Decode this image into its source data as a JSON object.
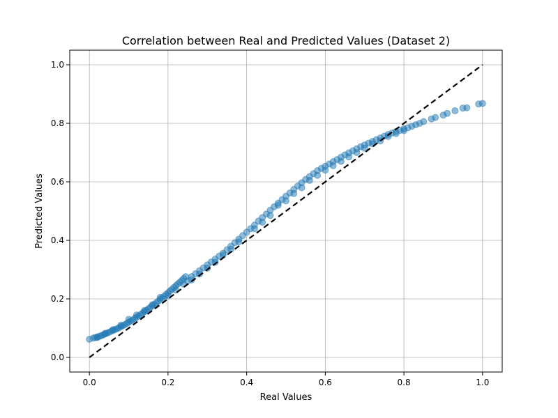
{
  "chart_data": {
    "type": "scatter",
    "title": "Correlation between Real and Predicted Values (Dataset 2)",
    "xlabel": "Real Values",
    "ylabel": "Predicted Values",
    "xlim": [
      -0.05,
      1.05
    ],
    "ylim": [
      -0.05,
      1.05
    ],
    "xticks": [
      "0.0",
      "0.2",
      "0.4",
      "0.6",
      "0.8",
      "1.0"
    ],
    "yticks": [
      "0.0",
      "0.2",
      "0.4",
      "0.6",
      "0.8",
      "1.0"
    ],
    "xtick_values": [
      0.0,
      0.2,
      0.4,
      0.6,
      0.8,
      1.0
    ],
    "ytick_values": [
      0.0,
      0.2,
      0.4,
      0.6,
      0.8,
      1.0
    ],
    "grid": true,
    "reference_line": {
      "x": [
        0,
        1
      ],
      "y": [
        0,
        1
      ],
      "style": "dashed",
      "color": "#000000"
    },
    "marker_color": "#1f77b4",
    "marker_alpha": 0.5,
    "series": [
      {
        "points": [
          [
            0.0,
            0.062
          ],
          [
            0.01,
            0.066
          ],
          [
            0.015,
            0.068
          ],
          [
            0.02,
            0.07
          ],
          [
            0.025,
            0.072
          ],
          [
            0.03,
            0.074
          ],
          [
            0.035,
            0.077
          ],
          [
            0.04,
            0.08
          ],
          [
            0.045,
            0.083
          ],
          [
            0.05,
            0.086
          ],
          [
            0.055,
            0.089
          ],
          [
            0.06,
            0.092
          ],
          [
            0.065,
            0.095
          ],
          [
            0.07,
            0.098
          ],
          [
            0.075,
            0.101
          ],
          [
            0.08,
            0.105
          ],
          [
            0.085,
            0.108
          ],
          [
            0.09,
            0.112
          ],
          [
            0.095,
            0.116
          ],
          [
            0.1,
            0.12
          ],
          [
            0.105,
            0.124
          ],
          [
            0.11,
            0.128
          ],
          [
            0.115,
            0.133
          ],
          [
            0.12,
            0.137
          ],
          [
            0.125,
            0.142
          ],
          [
            0.13,
            0.146
          ],
          [
            0.135,
            0.151
          ],
          [
            0.14,
            0.156
          ],
          [
            0.145,
            0.161
          ],
          [
            0.15,
            0.166
          ],
          [
            0.155,
            0.171
          ],
          [
            0.16,
            0.176
          ],
          [
            0.165,
            0.181
          ],
          [
            0.17,
            0.187
          ],
          [
            0.175,
            0.192
          ],
          [
            0.18,
            0.198
          ],
          [
            0.185,
            0.203
          ],
          [
            0.19,
            0.209
          ],
          [
            0.195,
            0.215
          ],
          [
            0.2,
            0.221
          ],
          [
            0.205,
            0.227
          ],
          [
            0.21,
            0.233
          ],
          [
            0.215,
            0.239
          ],
          [
            0.22,
            0.245
          ],
          [
            0.225,
            0.251
          ],
          [
            0.23,
            0.257
          ],
          [
            0.235,
            0.263
          ],
          [
            0.24,
            0.27
          ],
          [
            0.245,
            0.276
          ],
          [
            0.25,
            0.261
          ],
          [
            0.26,
            0.276
          ],
          [
            0.27,
            0.286
          ],
          [
            0.28,
            0.296
          ],
          [
            0.29,
            0.306
          ],
          [
            0.3,
            0.316
          ],
          [
            0.31,
            0.326
          ],
          [
            0.32,
            0.336
          ],
          [
            0.33,
            0.346
          ],
          [
            0.34,
            0.356
          ],
          [
            0.35,
            0.368
          ],
          [
            0.36,
            0.38
          ],
          [
            0.37,
            0.392
          ],
          [
            0.38,
            0.404
          ],
          [
            0.39,
            0.416
          ],
          [
            0.4,
            0.428
          ],
          [
            0.41,
            0.44
          ],
          [
            0.42,
            0.452
          ],
          [
            0.43,
            0.466
          ],
          [
            0.44,
            0.478
          ],
          [
            0.45,
            0.49
          ],
          [
            0.46,
            0.503
          ],
          [
            0.47,
            0.515
          ],
          [
            0.48,
            0.527
          ],
          [
            0.49,
            0.539
          ],
          [
            0.5,
            0.551
          ],
          [
            0.51,
            0.562
          ],
          [
            0.52,
            0.574
          ],
          [
            0.53,
            0.586
          ],
          [
            0.54,
            0.597
          ],
          [
            0.55,
            0.608
          ],
          [
            0.56,
            0.618
          ],
          [
            0.57,
            0.628
          ],
          [
            0.58,
            0.638
          ],
          [
            0.59,
            0.646
          ],
          [
            0.6,
            0.653
          ],
          [
            0.61,
            0.661
          ],
          [
            0.62,
            0.669
          ],
          [
            0.63,
            0.676
          ],
          [
            0.64,
            0.684
          ],
          [
            0.65,
            0.692
          ],
          [
            0.66,
            0.699
          ],
          [
            0.67,
            0.706
          ],
          [
            0.68,
            0.713
          ],
          [
            0.69,
            0.72
          ],
          [
            0.7,
            0.726
          ],
          [
            0.71,
            0.732
          ],
          [
            0.72,
            0.738
          ],
          [
            0.73,
            0.744
          ],
          [
            0.74,
            0.75
          ],
          [
            0.75,
            0.756
          ],
          [
            0.76,
            0.762
          ],
          [
            0.77,
            0.767
          ],
          [
            0.78,
            0.772
          ],
          [
            0.79,
            0.776
          ],
          [
            0.8,
            0.781
          ],
          [
            0.81,
            0.785
          ],
          [
            0.82,
            0.79
          ],
          [
            0.83,
            0.795
          ],
          [
            0.84,
            0.8
          ],
          [
            0.85,
            0.806
          ],
          [
            0.87,
            0.815
          ],
          [
            0.88,
            0.82
          ],
          [
            0.9,
            0.828
          ],
          [
            0.91,
            0.834
          ],
          [
            0.93,
            0.843
          ],
          [
            0.95,
            0.852
          ],
          [
            0.96,
            0.853
          ],
          [
            0.99,
            0.866
          ],
          [
            1.0,
            0.868
          ],
          [
            0.02,
            0.068
          ],
          [
            0.04,
            0.082
          ],
          [
            0.06,
            0.095
          ],
          [
            0.08,
            0.11
          ],
          [
            0.1,
            0.13
          ],
          [
            0.12,
            0.145
          ],
          [
            0.14,
            0.16
          ],
          [
            0.16,
            0.18
          ],
          [
            0.18,
            0.205
          ],
          [
            0.2,
            0.21
          ],
          [
            0.22,
            0.23
          ],
          [
            0.24,
            0.25
          ],
          [
            0.26,
            0.265
          ],
          [
            0.28,
            0.285
          ],
          [
            0.3,
            0.305
          ],
          [
            0.32,
            0.325
          ],
          [
            0.34,
            0.35
          ],
          [
            0.36,
            0.37
          ],
          [
            0.38,
            0.395
          ],
          [
            0.42,
            0.44
          ],
          [
            0.44,
            0.462
          ],
          [
            0.46,
            0.485
          ],
          [
            0.48,
            0.52
          ],
          [
            0.5,
            0.535
          ],
          [
            0.52,
            0.56
          ],
          [
            0.54,
            0.58
          ],
          [
            0.56,
            0.605
          ],
          [
            0.58,
            0.622
          ],
          [
            0.6,
            0.64
          ],
          [
            0.62,
            0.655
          ],
          [
            0.64,
            0.67
          ],
          [
            0.66,
            0.685
          ],
          [
            0.68,
            0.7
          ],
          [
            0.7,
            0.715
          ],
          [
            0.72,
            0.73
          ],
          [
            0.74,
            0.74
          ],
          [
            0.76,
            0.755
          ],
          [
            0.78,
            0.765
          ],
          [
            0.8,
            0.775
          ]
        ]
      }
    ]
  }
}
